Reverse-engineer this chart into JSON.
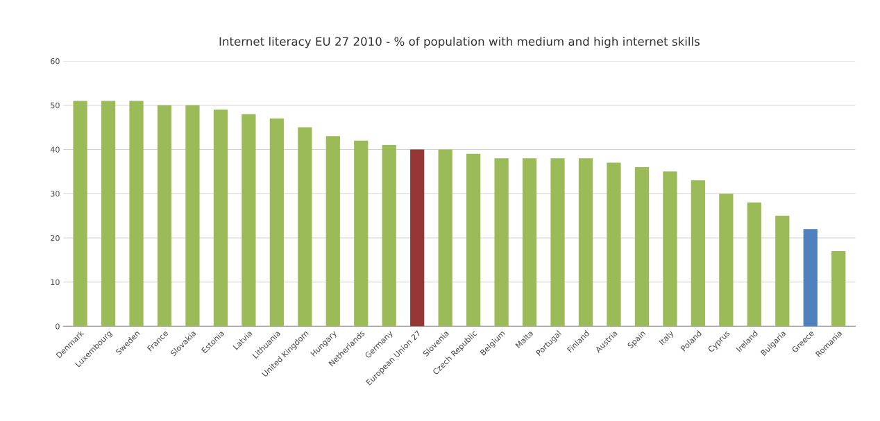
{
  "chart_data": {
    "type": "bar",
    "title": "Internet literacy EU 27 2010 - % of population with medium and high internet skills",
    "categories": [
      "Denmark",
      "Luxembourg",
      "Sweden",
      "France",
      "Slovakia",
      "Estonia",
      "Latvia",
      "Lithuania",
      "United Kingdom",
      "Hungary",
      "Netherlands",
      "Germany",
      "European Union 27",
      "Slovenia",
      "Czech Republic",
      "Belgium",
      "Malta",
      "Portugal",
      "Finland",
      "Austria",
      "Spain",
      "Italy",
      "Poland",
      "Cyprus",
      "Ireland",
      "Bulgaria",
      "Greece",
      "Romania"
    ],
    "values": [
      51,
      51,
      51,
      50,
      50,
      49,
      48,
      47,
      45,
      43,
      42,
      41,
      40,
      40,
      39,
      38,
      38,
      38,
      38,
      37,
      36,
      35,
      33,
      30,
      28,
      25,
      22,
      17
    ],
    "colors": [
      "#9bbb59",
      "#9bbb59",
      "#9bbb59",
      "#9bbb59",
      "#9bbb59",
      "#9bbb59",
      "#9bbb59",
      "#9bbb59",
      "#9bbb59",
      "#9bbb59",
      "#9bbb59",
      "#9bbb59",
      "#953735",
      "#9bbb59",
      "#9bbb59",
      "#9bbb59",
      "#9bbb59",
      "#9bbb59",
      "#9bbb59",
      "#9bbb59",
      "#9bbb59",
      "#9bbb59",
      "#9bbb59",
      "#9bbb59",
      "#9bbb59",
      "#9bbb59",
      "#4f81bd",
      "#9bbb59"
    ],
    "ylim": [
      0,
      60
    ],
    "yticks": [
      0,
      10,
      20,
      30,
      40,
      50,
      60
    ],
    "grid": "y",
    "legend": false
  }
}
